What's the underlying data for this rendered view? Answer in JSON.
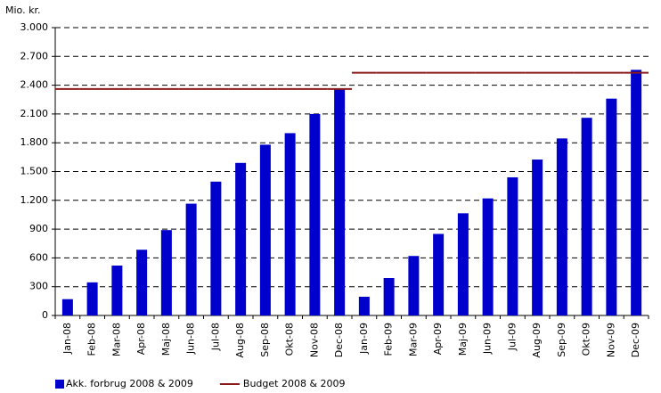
{
  "chart_data": {
    "type": "bar",
    "y_label": "Mio. kr.",
    "categories": [
      "Jan-08",
      "Feb-08",
      "Mar-08",
      "Apr-08",
      "Maj-08",
      "Jun-08",
      "Jul-08",
      "Aug-08",
      "Sep-08",
      "Okt-08",
      "Nov-08",
      "Dec-08",
      "Jan-09",
      "Feb-09",
      "Mar-09",
      "Apr-09",
      "Maj-09",
      "Jun-09",
      "Jul-09",
      "Aug-09",
      "Sep-09",
      "Okt-09",
      "Nov-09",
      "Dec-09"
    ],
    "series": [
      {
        "name": "Akk. forbrug 2008 & 2009",
        "color": "#0000cc",
        "type": "bar",
        "values": [
          170,
          345,
          520,
          685,
          890,
          1165,
          1395,
          1590,
          1780,
          1900,
          2100,
          2355,
          195,
          390,
          620,
          850,
          1065,
          1220,
          1440,
          1625,
          1845,
          2060,
          2260,
          2560
        ]
      },
      {
        "name": "Budget 2008 & 2009",
        "color": "#8b1a1a",
        "type": "step",
        "values": [
          2360,
          2360,
          2360,
          2360,
          2360,
          2360,
          2360,
          2360,
          2360,
          2360,
          2360,
          2360,
          2530,
          2530,
          2530,
          2530,
          2530,
          2530,
          2530,
          2530,
          2530,
          2530,
          2530,
          2530
        ]
      }
    ],
    "ylim": [
      0,
      3000
    ],
    "yticks": [
      0,
      300,
      600,
      900,
      {
        "value": 1200,
        "label": "1.200"
      },
      {
        "value": 1500,
        "label": "1.500"
      },
      {
        "value": 1800,
        "label": "1.800"
      },
      {
        "value": 2100,
        "label": "2.100"
      },
      {
        "value": 2400,
        "label": "2.400"
      },
      {
        "value": 2700,
        "label": "2.700"
      },
      {
        "value": 3000,
        "label": "3.000"
      }
    ],
    "grid": true
  }
}
